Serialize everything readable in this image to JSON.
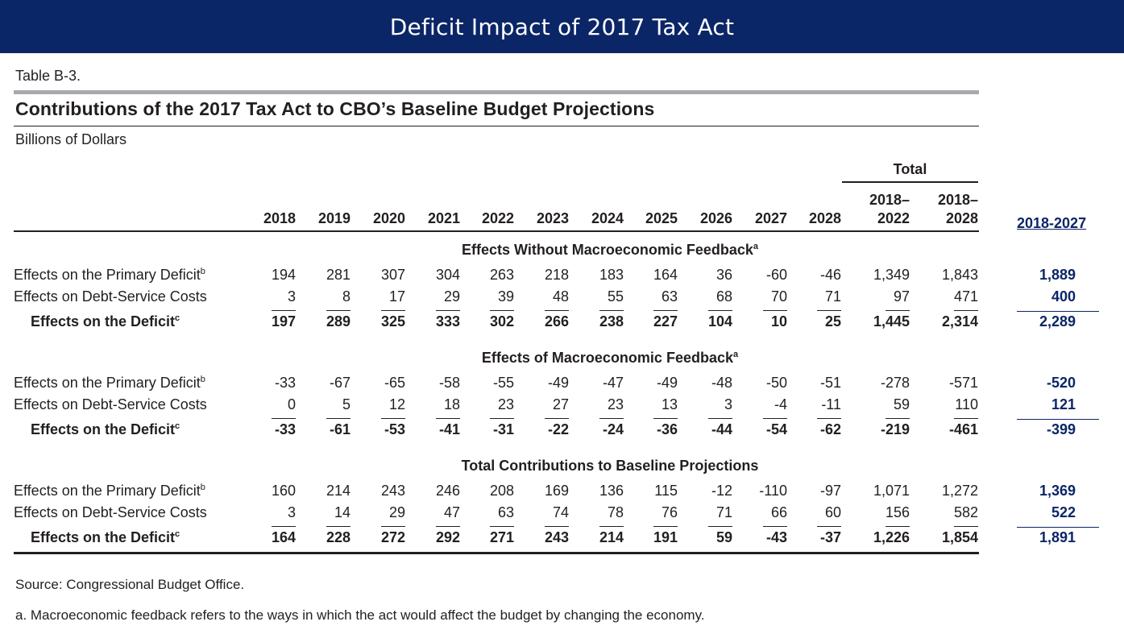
{
  "banner_title": "Deficit Impact of 2017 Tax Act",
  "table_label": "Table B-3.",
  "table_title": "Contributions of the 2017 Tax Act to CBO’s Baseline Budget Projections",
  "units": "Billions of Dollars",
  "total_header": "Total",
  "columns": [
    "2018",
    "2019",
    "2020",
    "2021",
    "2022",
    "2023",
    "2024",
    "2025",
    "2026",
    "2027",
    "2028",
    "2018–\n2022",
    "2018–\n2028"
  ],
  "side_header": "2018-2027",
  "sections": [
    {
      "heading": "Effects Without Macroeconomic Feedback",
      "heading_sup": "a",
      "rows": [
        {
          "label": "Effects on the Primary Deficit",
          "sup": "b",
          "values": [
            "194",
            "281",
            "307",
            "304",
            "263",
            "218",
            "183",
            "164",
            "36",
            "-60",
            "-46",
            "1,349",
            "1,843"
          ],
          "side": "1,889"
        },
        {
          "label": "Effects on Debt-Service Costs",
          "sup": "",
          "values": [
            "3",
            "8",
            "17",
            "29",
            "39",
            "48",
            "55",
            "63",
            "68",
            "70",
            "71",
            "97",
            "471"
          ],
          "side": "400"
        },
        {
          "label": "Effects on the Deficit",
          "sup": "c",
          "values": [
            "197",
            "289",
            "325",
            "333",
            "302",
            "266",
            "238",
            "227",
            "104",
            "10",
            "25",
            "1,445",
            "2,314"
          ],
          "side": "2,289"
        }
      ]
    },
    {
      "heading": "Effects of Macroeconomic Feedback",
      "heading_sup": "a",
      "rows": [
        {
          "label": "Effects on the Primary Deficit",
          "sup": "b",
          "values": [
            "-33",
            "-67",
            "-65",
            "-58",
            "-55",
            "-49",
            "-47",
            "-49",
            "-48",
            "-50",
            "-51",
            "-278",
            "-571"
          ],
          "side": "-520"
        },
        {
          "label": "Effects on Debt-Service Costs",
          "sup": "",
          "values": [
            "0",
            "5",
            "12",
            "18",
            "23",
            "27",
            "23",
            "13",
            "3",
            "-4",
            "-11",
            "59",
            "110"
          ],
          "side": "121"
        },
        {
          "label": "Effects on the Deficit",
          "sup": "c",
          "values": [
            "-33",
            "-61",
            "-53",
            "-41",
            "-31",
            "-22",
            "-24",
            "-36",
            "-44",
            "-54",
            "-62",
            "-219",
            "-461"
          ],
          "side": "-399"
        }
      ]
    },
    {
      "heading": "Total Contributions to Baseline Projections",
      "heading_sup": "",
      "rows": [
        {
          "label": "Effects on the Primary Deficit",
          "sup": "b",
          "values": [
            "160",
            "214",
            "243",
            "246",
            "208",
            "169",
            "136",
            "115",
            "-12",
            "-110",
            "-97",
            "1,071",
            "1,272"
          ],
          "side": "1,369"
        },
        {
          "label": "Effects on Debt-Service Costs",
          "sup": "",
          "values": [
            "3",
            "14",
            "29",
            "47",
            "63",
            "74",
            "78",
            "76",
            "71",
            "66",
            "60",
            "156",
            "582"
          ],
          "side": "522"
        },
        {
          "label": "Effects on the Deficit",
          "sup": "c",
          "values": [
            "164",
            "228",
            "272",
            "292",
            "271",
            "243",
            "214",
            "191",
            "59",
            "-43",
            "-37",
            "1,226",
            "1,854"
          ],
          "side": "1,891"
        }
      ]
    }
  ],
  "notes": [
    "Source: Congressional Budget Office.",
    "a. Macroeconomic feedback refers to the ways in which the act would affect the budget by changing the economy."
  ]
}
